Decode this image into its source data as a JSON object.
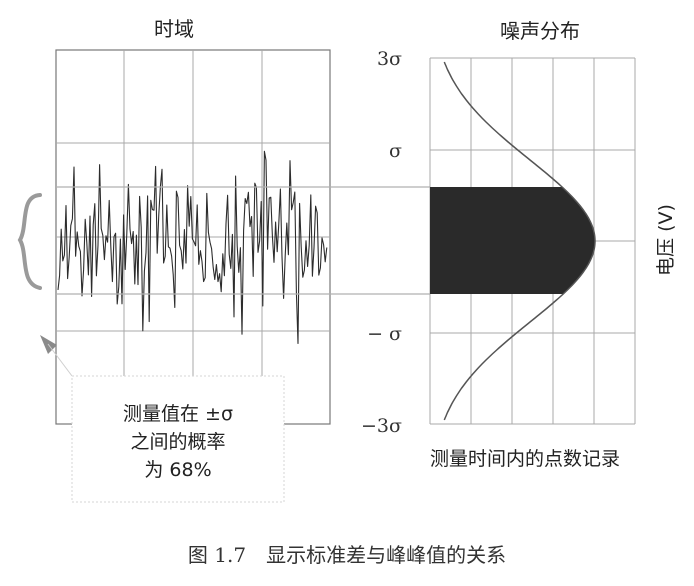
{
  "labels": {
    "time_domain": "时域",
    "noise_distribution": "噪声分布",
    "voltage_axis": "电压 (V)",
    "count_axis": "测量时间内的点数记录",
    "caption": "图 1.7　显示标准差与峰峰值的关系"
  },
  "y_ticks": [
    "3σ",
    "σ",
    "− σ",
    "−3σ"
  ],
  "callout": {
    "line1": "测量值在 ±σ",
    "line2": "之间的概率",
    "line3": "为 68%"
  },
  "colors": {
    "ink": "#222222",
    "grid": "#a8a8a8",
    "fill": "#2a2a2a",
    "brace": "#9a9a9a"
  }
}
